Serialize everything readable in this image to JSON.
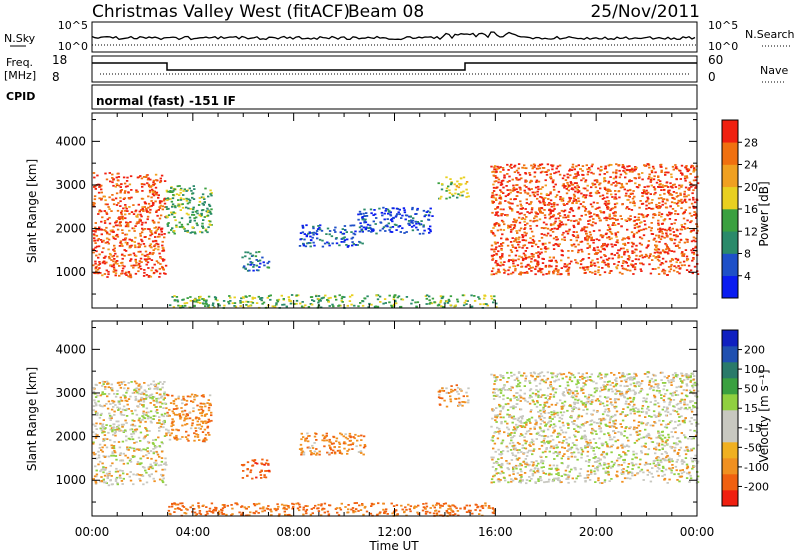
{
  "header": {
    "station": "Christmas Valley West (fitACF)",
    "beam": "Beam 08",
    "date": "25/Nov/2011"
  },
  "status_panels": {
    "nsky_label": "N.Sky",
    "nsky_ticks": [
      "10^5",
      "10^0"
    ],
    "nsearch_label": "N.Search",
    "nsearch_ticks": [
      "10^5",
      "10^0"
    ],
    "freq_label": "Freq.",
    "freq_unit": "[MHz]",
    "freq_ticks": [
      "18",
      "8"
    ],
    "nave_label": "Nave",
    "nave_ticks": [
      "60",
      "0"
    ],
    "cpid_label": "CPID",
    "cpid_value": "normal (fast) -151 IF"
  },
  "colors": {
    "power_scale": [
      "#0a1cf0",
      "#1e50c8",
      "#2a8a6a",
      "#3aa040",
      "#e8d020",
      "#f0a020",
      "#f07010",
      "#f02010"
    ],
    "velocity_scale": [
      "#f02010",
      "#f06010",
      "#f09020",
      "#f0b020",
      "#c8c8c0",
      "#c8c8c0",
      "#90d040",
      "#3aa040",
      "#2a7a6a",
      "#2050b0",
      "#1020c0"
    ]
  },
  "chart_data": [
    {
      "type": "heatmap",
      "name": "power",
      "xlabel": "",
      "ylabel": "Slant Range [km]",
      "xlim": [
        0,
        24
      ],
      "ylim": [
        180,
        4650
      ],
      "y_ticks": [
        "4000",
        "3000",
        "2000",
        "1000"
      ],
      "colorbar": {
        "label": "Power [dB]",
        "ticks": [
          "28",
          "24",
          "20",
          "16",
          "12",
          "8",
          "4"
        ]
      },
      "regions": [
        {
          "t0": 0.0,
          "t1": 2.9,
          "r0": 900,
          "r1": 3300,
          "value": 28
        },
        {
          "t0": 2.9,
          "t1": 4.7,
          "r0": 1900,
          "r1": 3000,
          "value": 14
        },
        {
          "t0": 5.9,
          "t1": 7.0,
          "r0": 1050,
          "r1": 1500,
          "value": 8
        },
        {
          "t0": 8.2,
          "t1": 10.8,
          "r0": 1600,
          "r1": 2100,
          "value": 6
        },
        {
          "t0": 10.5,
          "t1": 13.5,
          "r0": 1900,
          "r1": 2500,
          "value": 5
        },
        {
          "t0": 13.7,
          "t1": 14.9,
          "r0": 2700,
          "r1": 3200,
          "value": 16
        },
        {
          "t0": 15.8,
          "t1": 24.0,
          "r0": 950,
          "r1": 3500,
          "value": 28
        },
        {
          "t0": 3.0,
          "t1": 16.0,
          "r0": 200,
          "r1": 500,
          "value": 14
        }
      ]
    },
    {
      "type": "heatmap",
      "name": "velocity",
      "xlabel": "Time UT",
      "ylabel": "Slant Range [km]",
      "xlim": [
        0,
        24
      ],
      "ylim": [
        180,
        4650
      ],
      "x_ticks": [
        "00:00",
        "04:00",
        "08:00",
        "12:00",
        "16:00",
        "20:00",
        "00:00"
      ],
      "y_ticks": [
        "4000",
        "3000",
        "2000",
        "1000"
      ],
      "colorbar": {
        "label": "Velocity [m s⁻¹]",
        "ticks": [
          "200",
          "100",
          "50",
          "15",
          "-15",
          "-50",
          "-100",
          "-200"
        ]
      },
      "regions": [
        {
          "t0": 0.0,
          "t1": 2.9,
          "r0": 900,
          "r1": 3300,
          "value": 0
        },
        {
          "t0": 2.9,
          "t1": 4.7,
          "r0": 1900,
          "r1": 3000,
          "value": -40
        },
        {
          "t0": 5.9,
          "t1": 7.0,
          "r0": 1050,
          "r1": 1500,
          "value": -80
        },
        {
          "t0": 8.2,
          "t1": 10.8,
          "r0": 1600,
          "r1": 2100,
          "value": -40
        },
        {
          "t0": 13.7,
          "t1": 14.9,
          "r0": 2700,
          "r1": 3200,
          "value": -30
        },
        {
          "t0": 15.8,
          "t1": 24.0,
          "r0": 950,
          "r1": 3500,
          "value": 0
        },
        {
          "t0": 3.0,
          "t1": 16.0,
          "r0": 200,
          "r1": 500,
          "value": -60
        }
      ]
    }
  ]
}
